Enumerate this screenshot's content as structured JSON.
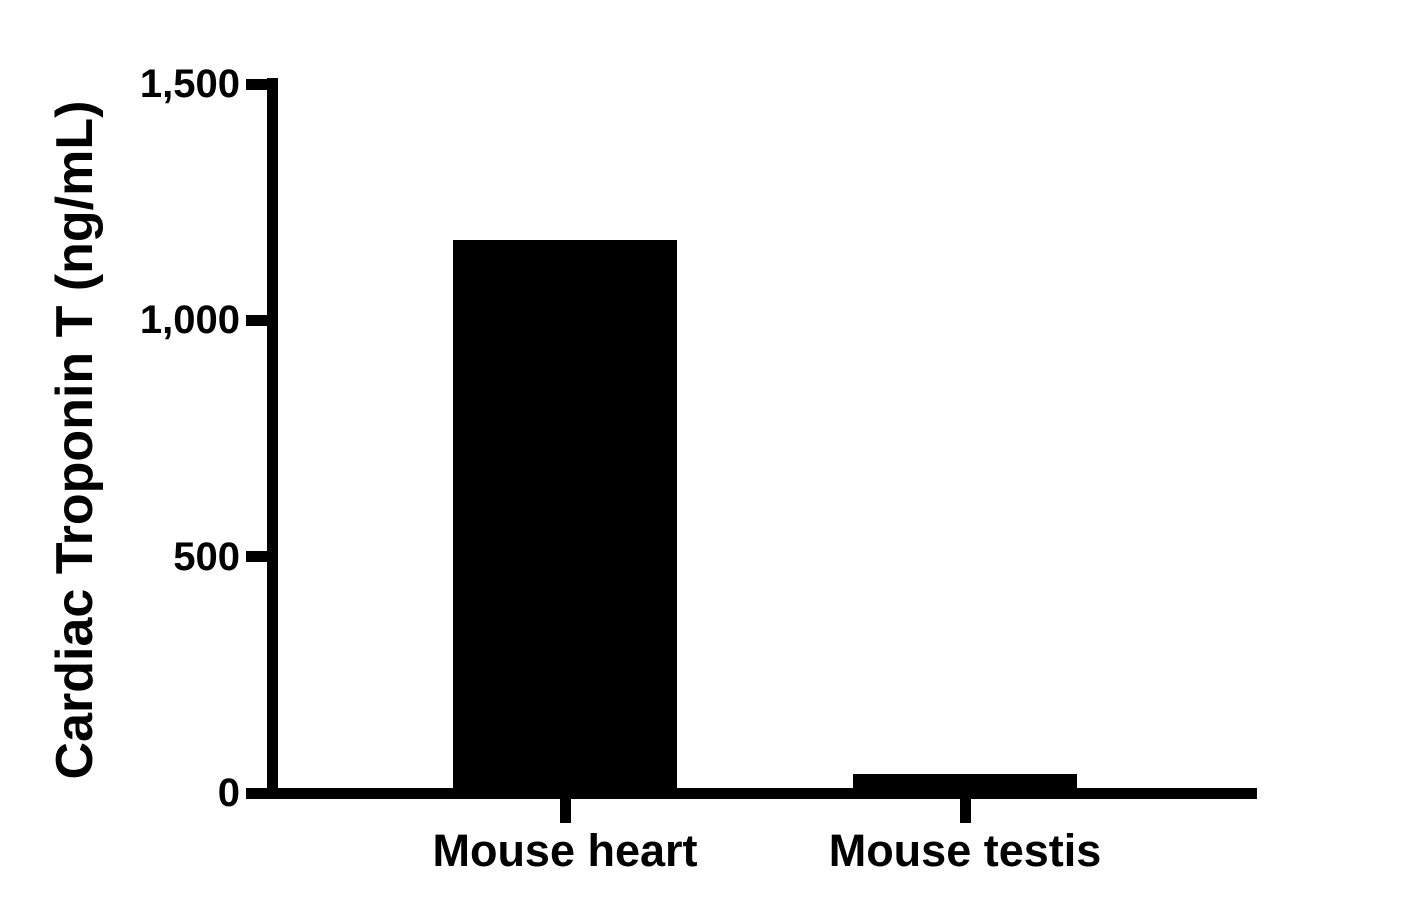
{
  "chart_data": {
    "type": "bar",
    "title": "",
    "xlabel": "",
    "ylabel": "Cardiac Troponin T (ng/mL)",
    "categories": [
      "Mouse heart",
      "Mouse testis"
    ],
    "values": [
      1170,
      40
    ],
    "ylim": [
      0,
      1500
    ],
    "yticks": [
      {
        "value": 0,
        "label": "0"
      },
      {
        "value": 500,
        "label": "500"
      },
      {
        "value": 1000,
        "label": "1,000"
      },
      {
        "value": 1500,
        "label": "1,500"
      }
    ],
    "bar_color": "#000000",
    "axis_color": "#000000",
    "background_color": "#ffffff",
    "grid": false,
    "legend_position": "none"
  }
}
